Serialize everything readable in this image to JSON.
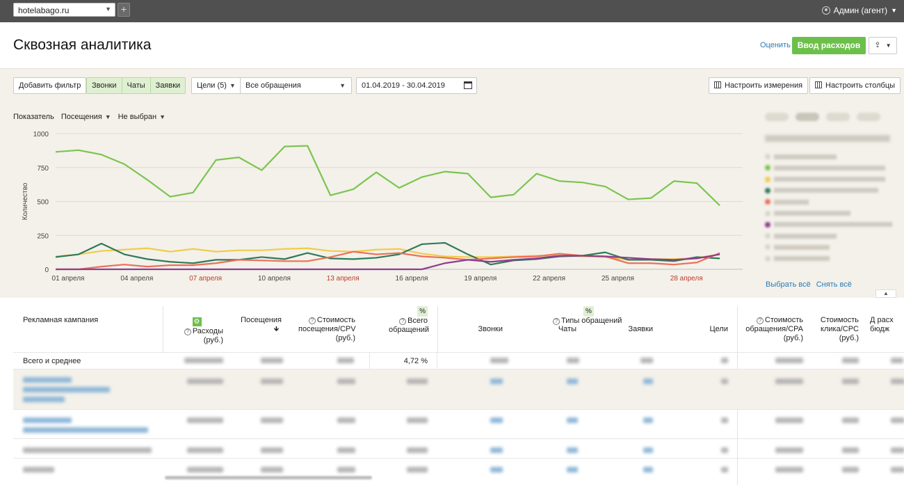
{
  "topbar": {
    "site": "hotelabago.ru",
    "add_icon": "plus-icon",
    "user": "Админ (агент)"
  },
  "header": {
    "title": "Сквозная аналитика",
    "rate_link": "Оценить",
    "expenses_button": "Ввод расходов",
    "export_icon": "export-icon"
  },
  "filters": {
    "add_filter": "Добавить фильтр",
    "types": [
      "Звонки",
      "Чаты",
      "Заявки"
    ],
    "goals": "Цели (5)",
    "requests": "Все обращения",
    "date_range": "01.04.2019 - 30.04.2019",
    "setup_dimensions": "Настроить измерения",
    "setup_columns": "Настроить столбцы"
  },
  "indicator": {
    "label": "Показатель",
    "metric": "Посещения",
    "second": "Не выбран"
  },
  "legend_panel": {
    "select_all": "Выбрать всё",
    "clear_all": "Снять всё"
  },
  "chart_data": {
    "type": "line",
    "ylabel": "Количество",
    "ylim": [
      0,
      1000
    ],
    "yticks": [
      0,
      250,
      500,
      750,
      1000
    ],
    "x_tick_labels": [
      "01 апреля",
      "04 апреля",
      "07 апреля",
      "10 апреля",
      "13 апреля",
      "16 апреля",
      "19 апреля",
      "22 апреля",
      "25 апреля",
      "28 апреля"
    ],
    "weekend_ticks": [
      "07 апреля",
      "13 апреля",
      "28 апреля"
    ],
    "weekend_color": "#c0392b",
    "x": [
      1,
      2,
      3,
      4,
      5,
      6,
      7,
      8,
      9,
      10,
      11,
      12,
      13,
      14,
      15,
      16,
      17,
      18,
      19,
      20,
      21,
      22,
      23,
      24,
      25,
      26,
      27,
      28,
      29,
      30
    ],
    "series": [
      {
        "color": "#7cc44e",
        "values": [
          865,
          878,
          845,
          775,
          660,
          535,
          565,
          805,
          825,
          730,
          905,
          910,
          545,
          590,
          715,
          600,
          680,
          720,
          705,
          530,
          550,
          705,
          650,
          640,
          610,
          515,
          525,
          650,
          635,
          470
        ]
      },
      {
        "color": "#f1cc4b",
        "values": [
          95,
          110,
          135,
          145,
          155,
          130,
          150,
          130,
          140,
          140,
          150,
          155,
          135,
          130,
          145,
          150,
          115,
          95,
          90,
          90,
          95,
          100,
          100,
          95,
          90,
          70,
          75,
          75,
          85,
          110
        ]
      },
      {
        "color": "#2e7a5a",
        "values": [
          90,
          110,
          190,
          110,
          75,
          55,
          45,
          70,
          70,
          90,
          75,
          120,
          80,
          75,
          85,
          110,
          185,
          195,
          110,
          35,
          65,
          75,
          95,
          100,
          125,
          70,
          70,
          60,
          90,
          80
        ]
      },
      {
        "color": "#ec7057",
        "values": [
          0,
          0,
          20,
          35,
          20,
          30,
          30,
          45,
          70,
          65,
          60,
          60,
          90,
          130,
          110,
          120,
          95,
          85,
          70,
          80,
          90,
          95,
          115,
          100,
          95,
          45,
          45,
          35,
          50,
          120
        ]
      },
      {
        "color": "#8e3d8e",
        "values": [
          0,
          0,
          0,
          0,
          0,
          0,
          0,
          0,
          0,
          0,
          0,
          0,
          0,
          0,
          0,
          0,
          0,
          45,
          70,
          55,
          70,
          80,
          100,
          100,
          95,
          85,
          75,
          70,
          80,
          110
        ]
      }
    ]
  },
  "table": {
    "headers": {
      "campaign": "Рекламная кампания",
      "expenses": "Расходы (руб.)",
      "visits": "Посещения",
      "cpv": "Стоимость посещения/CPV (руб.)",
      "total": "Всего обращений",
      "types": "Типы обращений",
      "calls": "Звонки",
      "chats": "Чаты",
      "requests": "Заявки",
      "goals": "Цели",
      "cpa": "Стоимость обращения/CPA (руб.)",
      "cpc": "Стоимость клика/CPC (руб.)",
      "budget": "Д расх бюдж"
    },
    "pct_badge": "%",
    "total_row": {
      "label": "Всего и среднее",
      "total_pct": "4,72 %"
    }
  },
  "colors": {
    "accent_green": "#6cc04a",
    "link": "#2a7ab5",
    "band": "#f3f1ea"
  }
}
